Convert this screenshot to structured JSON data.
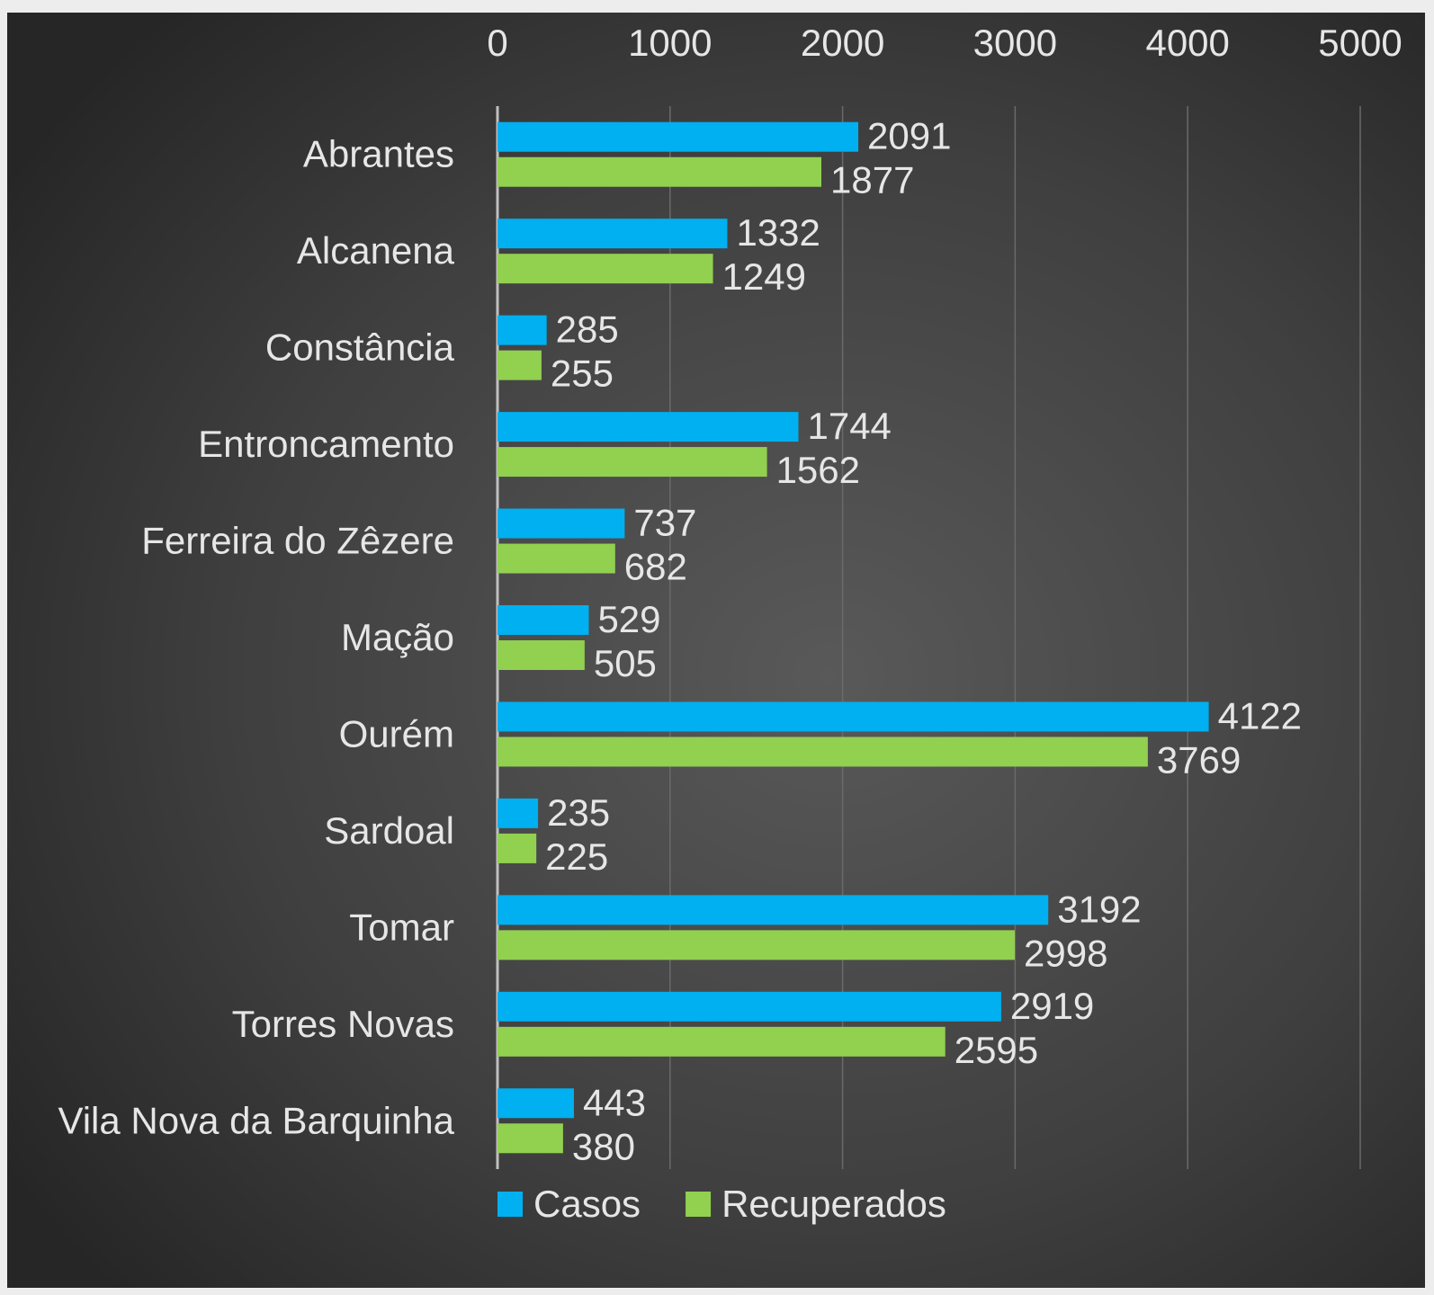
{
  "chart_data": {
    "type": "bar",
    "orientation": "horizontal",
    "title": "",
    "xlabel": "",
    "ylabel": "",
    "categories": [
      "Abrantes",
      "Alcanena",
      "Constância",
      "Entroncamento",
      "Ferreira do Zêzere",
      "Mação",
      "Ourém",
      "Sardoal",
      "Tomar",
      "Torres Novas",
      "Vila Nova da Barquinha"
    ],
    "series": [
      {
        "name": "Casos",
        "color": "#00b0f0",
        "values": [
          2091,
          1332,
          285,
          1744,
          737,
          529,
          4122,
          235,
          3192,
          2919,
          443
        ]
      },
      {
        "name": "Recuperados",
        "color": "#92d050",
        "values": [
          1877,
          1249,
          255,
          1562,
          682,
          505,
          3769,
          225,
          2998,
          2595,
          380
        ]
      }
    ],
    "xlim": [
      0,
      5000
    ],
    "x_ticks": [
      "0",
      "1000",
      "2000",
      "3000",
      "4000",
      "5000"
    ],
    "x_axis_position": "top",
    "grid": true,
    "data_labels": true,
    "legend": "bottom"
  }
}
